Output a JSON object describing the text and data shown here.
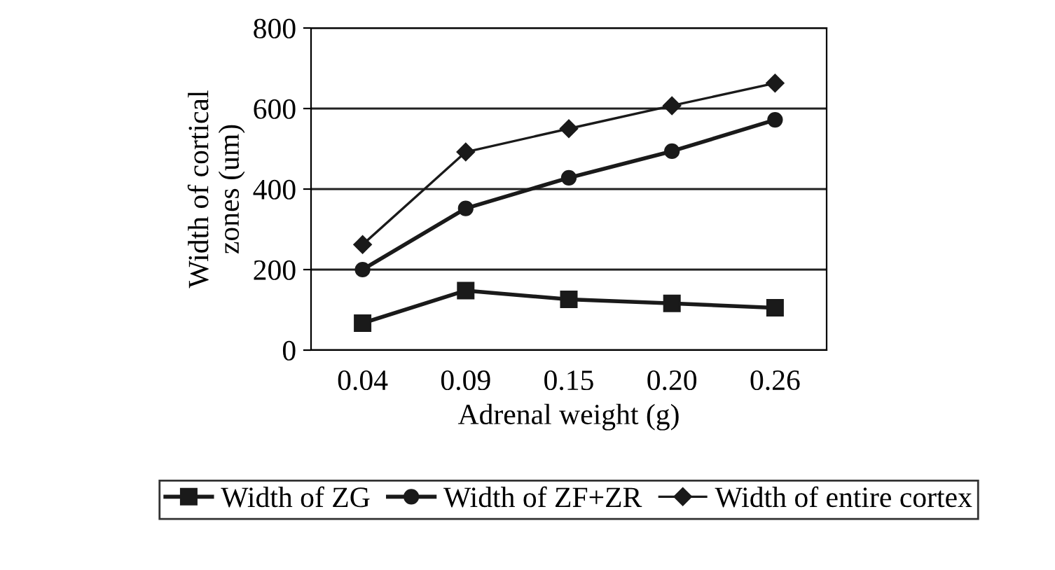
{
  "chart_data": {
    "type": "line",
    "xlabel": "Adrenal weight (g)",
    "ylabel": "Width of cortical\nzones (um)",
    "categories": [
      "0.04",
      "0.09",
      "0.15",
      "0.20",
      "0.26"
    ],
    "series": [
      {
        "name": "Width of ZG",
        "color": "#1a1a1a",
        "marker": "square",
        "values": [
          67,
          148,
          126,
          116,
          105
        ]
      },
      {
        "name": "Width of ZF+ZR",
        "color": "#1a1a1a",
        "marker": "circle",
        "values": [
          200,
          352,
          428,
          494,
          572
        ]
      },
      {
        "name": "Width of entire cortex",
        "color": "#1a1a1a",
        "marker": "diamond",
        "values": [
          262,
          492,
          550,
          607,
          663
        ]
      }
    ],
    "ylim": [
      0,
      800
    ],
    "yticks": [
      0,
      200,
      400,
      600,
      800
    ],
    "grid": "y",
    "legend": "bottom"
  }
}
